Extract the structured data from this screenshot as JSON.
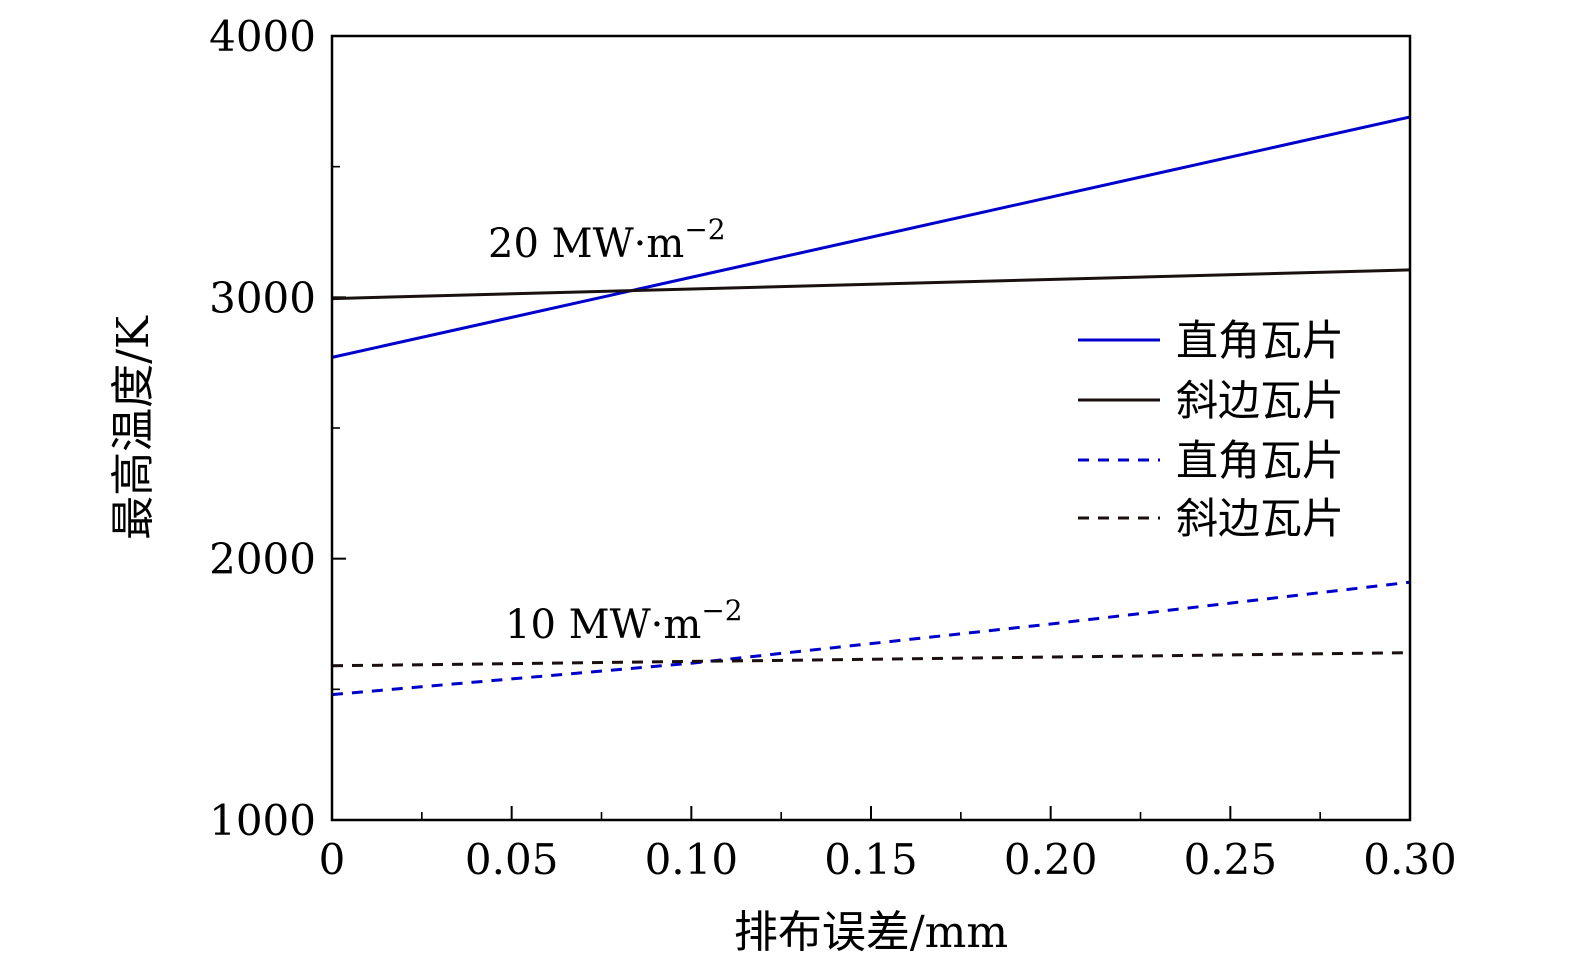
{
  "chart_data": {
    "type": "line",
    "xlabel": "排布误差/mm",
    "ylabel": "最高温度/K",
    "xlim": [
      0,
      0.3
    ],
    "ylim": [
      1000,
      4000
    ],
    "xticks": [
      "0",
      "0.05",
      "0.10",
      "0.15",
      "0.20",
      "0.25",
      "0.30"
    ],
    "xtick_values": [
      0,
      0.05,
      0.1,
      0.15,
      0.2,
      0.25,
      0.3
    ],
    "yticks": [
      "1000",
      "2000",
      "3000",
      "4000"
    ],
    "ytick_values": [
      1000,
      2000,
      3000,
      4000
    ],
    "grid": false,
    "legend_position": "right",
    "annotations": [
      {
        "base": "20 MW·m",
        "sup": "−2",
        "x": 0.05,
        "y": 3200
      },
      {
        "base": "10 MW·m",
        "sup": "−2",
        "x": 0.05,
        "y": 1750
      }
    ],
    "series": [
      {
        "name": "直角瓦片",
        "color": "#0000cc",
        "dash": "solid",
        "x": [
          0,
          0.3
        ],
        "y": [
          2770,
          3690
        ]
      },
      {
        "name": "斜边瓦片",
        "color": "#1a1010",
        "dash": "solid",
        "x": [
          0,
          0.3
        ],
        "y": [
          2995,
          3105
        ]
      },
      {
        "name": "直角瓦片",
        "color": "#0000cc",
        "dash": "dashed",
        "x": [
          0,
          0.1,
          0.2,
          0.3
        ],
        "y": [
          1480,
          1600,
          1750,
          1910
        ]
      },
      {
        "name": "斜边瓦片",
        "color": "#1a1010",
        "dash": "dashed",
        "x": [
          0,
          0.3
        ],
        "y": [
          1590,
          1640
        ]
      }
    ]
  }
}
